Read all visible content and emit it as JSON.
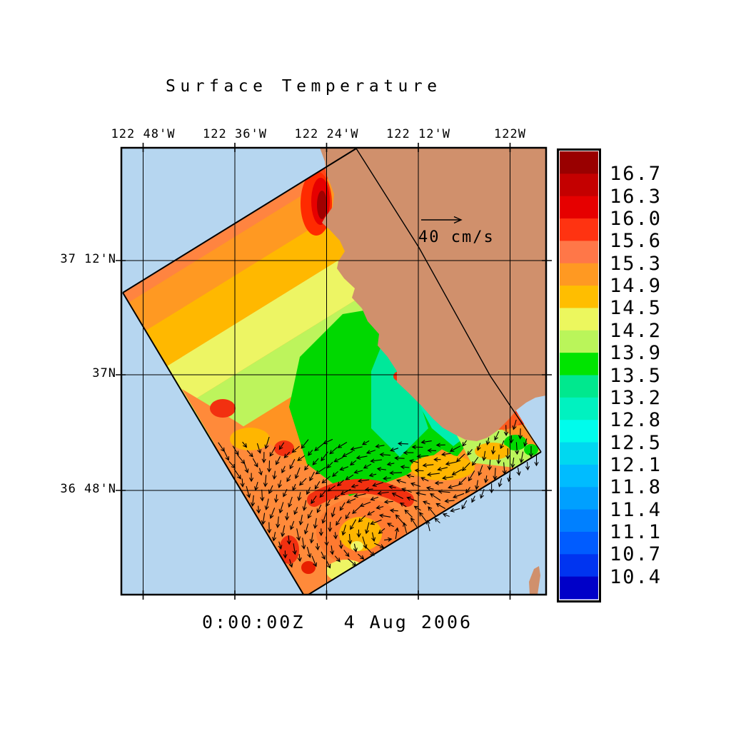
{
  "title": "Surface Temperature",
  "timestamp": "0:00:00Z   4 Aug 2006",
  "vector_scale": {
    "label": "40 cm/s"
  },
  "axes": {
    "top_labels": [
      "122 48'W",
      "122 36'W",
      "122 24'W",
      "122 12'W",
      "122W"
    ],
    "left_labels": [
      "37 12'N",
      "37N",
      "36 48'N"
    ]
  },
  "colorbar": {
    "labels": [
      "16.7",
      "16.3",
      "16.0",
      "15.6",
      "15.3",
      "14.9",
      "14.5",
      "14.2",
      "13.9",
      "13.5",
      "13.2",
      "12.8",
      "12.5",
      "12.1",
      "11.8",
      "11.4",
      "11.1",
      "10.7",
      "10.4"
    ],
    "band_colors": [
      "#990000",
      "#c40000",
      "#e60000",
      "#ff3311",
      "#ff7748",
      "#ff9922",
      "#ffbe00",
      "#ecf75e",
      "#baf55a",
      "#00e400",
      "#00e88e",
      "#00f2c0",
      "#00fcec",
      "#00d8f0",
      "#00bcff",
      "#00a0ff",
      "#0080ff",
      "#005cff",
      "#0034f0",
      "#0000c8"
    ]
  },
  "colors": {
    "ocean": "#b6d6f0",
    "land": "#d0906c",
    "frame": "#000000",
    "background": "#ffffff"
  },
  "chart_data": {
    "type": "heatmap",
    "title": "Surface Temperature",
    "x_tick_labels": [
      "122 48'W",
      "122 36'W",
      "122 24'W",
      "122 12'W",
      "122W"
    ],
    "y_tick_labels": [
      "37 12'N",
      "37N",
      "36 48'N"
    ],
    "colorbar_tick_labels": [
      16.7,
      16.3,
      16.0,
      15.6,
      15.3,
      14.9,
      14.5,
      14.2,
      13.9,
      13.5,
      13.2,
      12.8,
      12.5,
      12.1,
      11.8,
      11.4,
      11.1,
      10.7,
      10.4
    ],
    "colorbar_band_colors": [
      "#990000",
      "#c40000",
      "#e60000",
      "#ff3311",
      "#ff7748",
      "#ff9922",
      "#ffbe00",
      "#ecf75e",
      "#baf55a",
      "#00e400",
      "#00e88e",
      "#00f2c0",
      "#00fcec",
      "#00d8f0",
      "#00bcff",
      "#00a0ff",
      "#0080ff",
      "#005cff",
      "#0034f0",
      "#0000c8"
    ],
    "value_range": [
      10.4,
      16.7
    ],
    "time_label": "0:00:00Z   4 Aug 2006",
    "vector_scale_label": "40 cm/s",
    "legend_position": "right colorbar; vector scale arrow over land at upper right",
    "grid": true,
    "description": "Sea surface temperature with surface current vectors on a rotated model domain off the central California coast: warm (orange/red) water offshore and along the southern edge with an eddy near the bottom, cool (green/cyan) band hugging the coastline; tan land mass upper right, light blue ocean background."
  }
}
